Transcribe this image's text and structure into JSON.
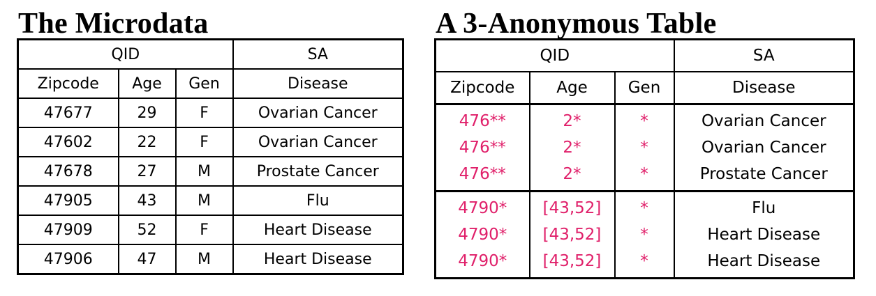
{
  "left": {
    "title": "The Microdata",
    "group_qid": "QID",
    "group_sa": "SA",
    "columns": [
      "Zipcode",
      "Age",
      "Gen",
      "Disease"
    ],
    "rows": [
      [
        "47677",
        "29",
        "F",
        "Ovarian Cancer"
      ],
      [
        "47602",
        "22",
        "F",
        "Ovarian Cancer"
      ],
      [
        "47678",
        "27",
        "M",
        "Prostate Cancer"
      ],
      [
        "47905",
        "43",
        "M",
        "Flu"
      ],
      [
        "47909",
        "52",
        "F",
        "Heart Disease"
      ],
      [
        "47906",
        "47",
        "M",
        "Heart Disease"
      ]
    ]
  },
  "right": {
    "title": "A 3-Anonymous Table",
    "group_qid": "QID",
    "group_sa": "SA",
    "columns": [
      "Zipcode",
      "Age",
      "Gen",
      "Disease"
    ],
    "rows": [
      [
        "476**",
        "2*",
        "*",
        "Ovarian Cancer"
      ],
      [
        "476**",
        "2*",
        "*",
        "Ovarian Cancer"
      ],
      [
        "476**",
        "2*",
        "*",
        "Prostate Cancer"
      ],
      [
        "4790*",
        "[43,52]",
        "*",
        "Flu"
      ],
      [
        "4790*",
        "[43,52]",
        "*",
        "Heart Disease"
      ],
      [
        "4790*",
        "[43,52]",
        "*",
        "Heart Disease"
      ]
    ],
    "generalized_color": "#e0206a"
  }
}
